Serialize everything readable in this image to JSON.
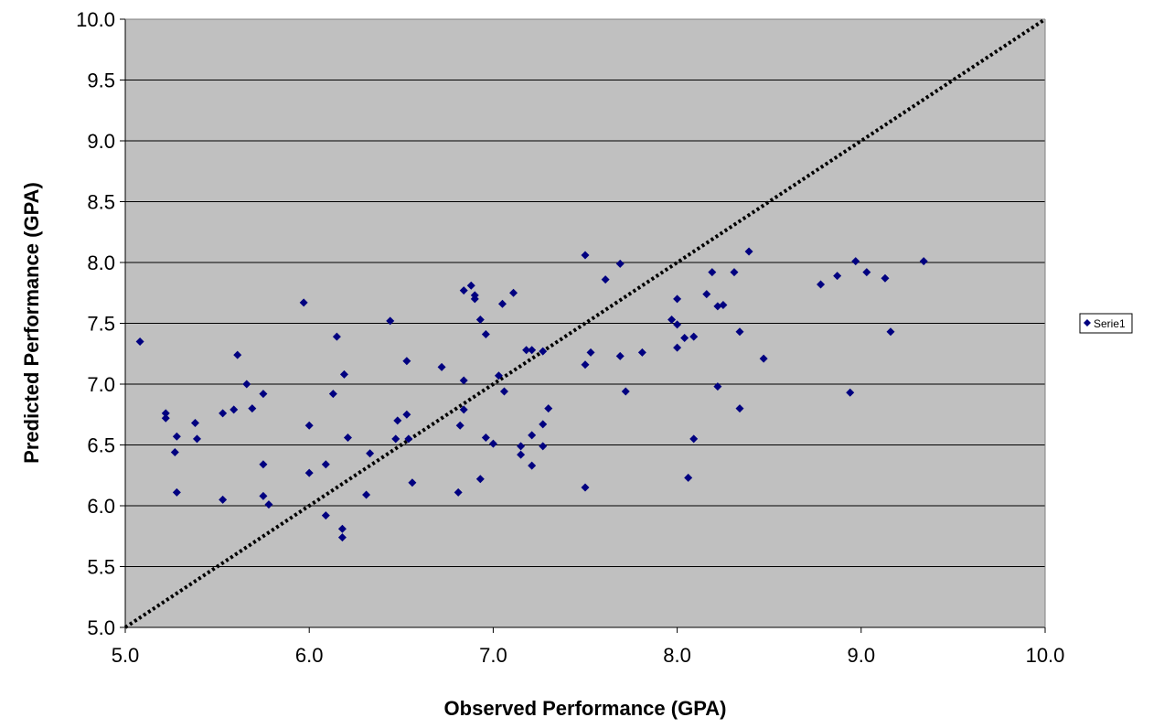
{
  "chart_data": {
    "type": "scatter",
    "title": "",
    "xlabel": "Observed Performance (GPA)",
    "ylabel": "Predicted Performance  (GPA)",
    "xlim": [
      5.0,
      10.0
    ],
    "ylim": [
      5.0,
      10.0
    ],
    "x_ticks": [
      "5.0",
      "6.0",
      "7.0",
      "8.0",
      "9.0",
      "10.0"
    ],
    "y_ticks": [
      "5.0",
      "5.5",
      "6.0",
      "6.5",
      "7.0",
      "7.5",
      "8.0",
      "8.5",
      "9.0",
      "9.5",
      "10.0"
    ],
    "grid": "horizontal",
    "legend_position": "right",
    "plot_background": "#c0c0c0",
    "marker_color": "#000080",
    "reference_line": {
      "from": [
        5.0,
        5.0
      ],
      "to": [
        10.0,
        10.0
      ],
      "style": "dotted"
    },
    "series": [
      {
        "name": "Serie1",
        "points": [
          [
            5.08,
            7.35
          ],
          [
            5.22,
            6.76
          ],
          [
            5.22,
            6.72
          ],
          [
            5.28,
            6.57
          ],
          [
            5.27,
            6.44
          ],
          [
            5.28,
            6.11
          ],
          [
            5.38,
            6.68
          ],
          [
            5.39,
            6.55
          ],
          [
            5.53,
            6.76
          ],
          [
            5.53,
            6.05
          ],
          [
            5.59,
            6.79
          ],
          [
            5.61,
            7.24
          ],
          [
            5.66,
            7.0
          ],
          [
            5.69,
            6.8
          ],
          [
            5.75,
            6.92
          ],
          [
            5.75,
            6.34
          ],
          [
            5.75,
            6.08
          ],
          [
            5.78,
            6.01
          ],
          [
            5.97,
            7.67
          ],
          [
            6.0,
            6.66
          ],
          [
            6.0,
            6.27
          ],
          [
            6.09,
            6.34
          ],
          [
            6.09,
            5.92
          ],
          [
            6.13,
            6.92
          ],
          [
            6.15,
            7.39
          ],
          [
            6.18,
            5.81
          ],
          [
            6.18,
            5.74
          ],
          [
            6.19,
            7.08
          ],
          [
            6.21,
            6.56
          ],
          [
            6.31,
            6.09
          ],
          [
            6.33,
            6.43
          ],
          [
            6.44,
            7.52
          ],
          [
            6.47,
            6.55
          ],
          [
            6.48,
            6.7
          ],
          [
            6.53,
            7.19
          ],
          [
            6.53,
            6.75
          ],
          [
            6.54,
            6.55
          ],
          [
            6.56,
            6.19
          ],
          [
            6.72,
            7.14
          ],
          [
            6.81,
            6.11
          ],
          [
            6.82,
            6.66
          ],
          [
            6.84,
            7.77
          ],
          [
            6.84,
            7.03
          ],
          [
            6.84,
            6.79
          ],
          [
            6.88,
            7.81
          ],
          [
            6.9,
            7.73
          ],
          [
            6.9,
            7.7
          ],
          [
            6.93,
            7.53
          ],
          [
            6.93,
            6.22
          ],
          [
            6.96,
            7.41
          ],
          [
            6.96,
            6.56
          ],
          [
            7.0,
            6.51
          ],
          [
            7.03,
            7.07
          ],
          [
            7.05,
            7.66
          ],
          [
            7.06,
            6.94
          ],
          [
            7.11,
            7.75
          ],
          [
            7.15,
            6.49
          ],
          [
            7.15,
            6.42
          ],
          [
            7.18,
            7.28
          ],
          [
            7.21,
            7.28
          ],
          [
            7.21,
            6.58
          ],
          [
            7.21,
            6.33
          ],
          [
            7.27,
            7.27
          ],
          [
            7.27,
            6.67
          ],
          [
            7.27,
            6.49
          ],
          [
            7.3,
            6.8
          ],
          [
            7.5,
            8.06
          ],
          [
            7.5,
            7.16
          ],
          [
            7.5,
            6.15
          ],
          [
            7.53,
            7.26
          ],
          [
            7.61,
            7.86
          ],
          [
            7.69,
            7.99
          ],
          [
            7.69,
            7.23
          ],
          [
            7.72,
            6.94
          ],
          [
            7.81,
            7.26
          ],
          [
            7.97,
            7.53
          ],
          [
            8.0,
            7.7
          ],
          [
            8.0,
            7.49
          ],
          [
            8.0,
            7.3
          ],
          [
            8.04,
            7.38
          ],
          [
            8.06,
            6.23
          ],
          [
            8.09,
            7.39
          ],
          [
            8.09,
            6.55
          ],
          [
            8.16,
            7.74
          ],
          [
            8.19,
            7.92
          ],
          [
            8.22,
            7.64
          ],
          [
            8.22,
            6.98
          ],
          [
            8.25,
            7.65
          ],
          [
            8.31,
            7.92
          ],
          [
            8.34,
            7.43
          ],
          [
            8.34,
            6.8
          ],
          [
            8.39,
            8.09
          ],
          [
            8.47,
            7.21
          ],
          [
            8.78,
            7.82
          ],
          [
            8.87,
            7.89
          ],
          [
            8.94,
            6.93
          ],
          [
            8.97,
            8.01
          ],
          [
            9.03,
            7.92
          ],
          [
            9.13,
            7.87
          ],
          [
            9.16,
            7.43
          ],
          [
            9.34,
            8.01
          ]
        ]
      }
    ]
  }
}
